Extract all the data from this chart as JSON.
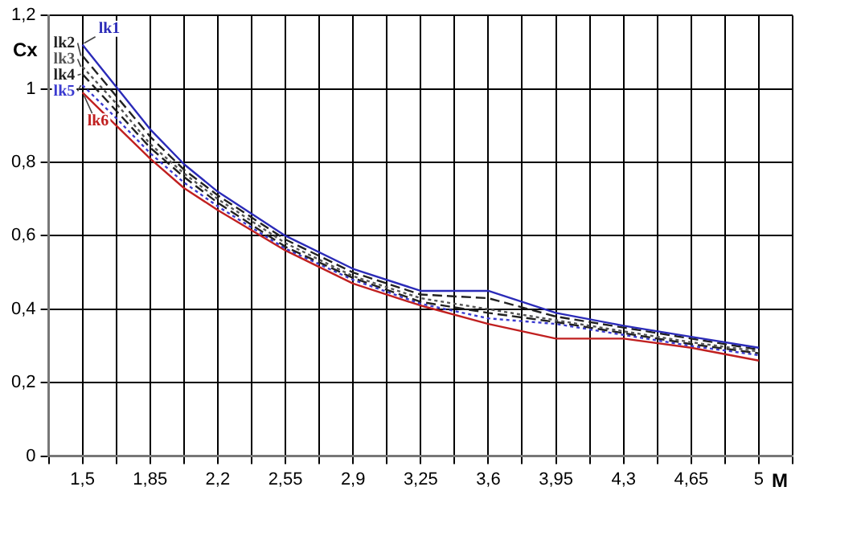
{
  "chart_data": {
    "type": "line",
    "xlabel": "M",
    "ylabel": "Cx",
    "x": [
      1.5,
      1.675,
      1.85,
      2.025,
      2.2,
      2.55,
      2.9,
      3.25,
      3.6,
      3.95,
      4.3,
      4.65,
      5
    ],
    "series": [
      {
        "name": "lk1",
        "color": "#2b2bb8",
        "line_style": "solid",
        "values": [
          1.12,
          1.005,
          0.89,
          0.795,
          0.72,
          0.6,
          0.51,
          0.45,
          0.45,
          0.39,
          0.355,
          0.325,
          0.295
        ]
      },
      {
        "name": "lk2",
        "color": "#222222",
        "line_style": "dashed",
        "values": [
          1.09,
          0.98,
          0.87,
          0.78,
          0.71,
          0.59,
          0.5,
          0.44,
          0.43,
          0.38,
          0.35,
          0.32,
          0.29
        ]
      },
      {
        "name": "lk3",
        "color": "#555555",
        "line_style": "dotted",
        "values": [
          1.06,
          0.96,
          0.85,
          0.77,
          0.7,
          0.58,
          0.49,
          0.43,
          0.4,
          0.37,
          0.34,
          0.31,
          0.285
        ]
      },
      {
        "name": "lk4",
        "color": "#222222",
        "line_style": "dashed",
        "values": [
          1.04,
          0.94,
          0.84,
          0.76,
          0.69,
          0.57,
          0.485,
          0.42,
          0.39,
          0.365,
          0.335,
          0.305,
          0.28
        ]
      },
      {
        "name": "lk5",
        "color": "#3a3ad0",
        "line_style": "dotted",
        "values": [
          1.01,
          0.92,
          0.825,
          0.745,
          0.68,
          0.565,
          0.48,
          0.415,
          0.375,
          0.36,
          0.33,
          0.3,
          0.275
        ]
      },
      {
        "name": "lk6",
        "color": "#c02020",
        "line_style": "solid",
        "values": [
          0.99,
          0.9,
          0.81,
          0.73,
          0.67,
          0.56,
          0.47,
          0.41,
          0.36,
          0.32,
          0.32,
          0.295,
          0.26
        ]
      }
    ],
    "xlim": [
      1.325,
      5.175
    ],
    "xticks": [
      {
        "value": 1.325,
        "label": null
      },
      {
        "value": 1.5,
        "label": "1,5"
      },
      {
        "value": 1.675,
        "label": null
      },
      {
        "value": 1.85,
        "label": "1,85"
      },
      {
        "value": 2.025,
        "label": null
      },
      {
        "value": 2.2,
        "label": "2,2"
      },
      {
        "value": 2.375,
        "label": null
      },
      {
        "value": 2.55,
        "label": "2,55"
      },
      {
        "value": 2.725,
        "label": null
      },
      {
        "value": 2.9,
        "label": "2,9"
      },
      {
        "value": 3.075,
        "label": null
      },
      {
        "value": 3.25,
        "label": "3,25"
      },
      {
        "value": 3.425,
        "label": null
      },
      {
        "value": 3.6,
        "label": "3,6"
      },
      {
        "value": 3.775,
        "label": null
      },
      {
        "value": 3.95,
        "label": "3,95"
      },
      {
        "value": 4.125,
        "label": null
      },
      {
        "value": 4.3,
        "label": "4,3"
      },
      {
        "value": 4.475,
        "label": null
      },
      {
        "value": 4.65,
        "label": "4,65"
      },
      {
        "value": 4.825,
        "label": null
      },
      {
        "value": 5,
        "label": "5"
      },
      {
        "value": 5.175,
        "label": null
      }
    ],
    "ylim": [
      0,
      1.2
    ],
    "yticks": [
      0,
      {
        "value": 0.2,
        "label": "0,2"
      },
      {
        "value": 0.4,
        "label": "0,4"
      },
      {
        "value": 0.6,
        "label": "0,6"
      },
      {
        "value": 0.8,
        "label": "0,8"
      },
      1,
      {
        "value": 1.2,
        "label": "1,2"
      }
    ],
    "grid": true,
    "legend": false,
    "marker": "none"
  }
}
